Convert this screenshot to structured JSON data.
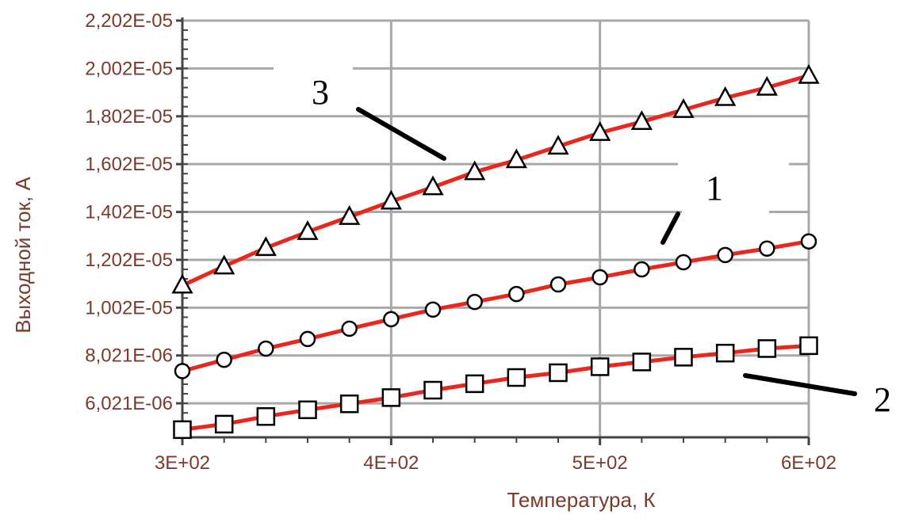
{
  "chart_data": {
    "type": "line",
    "title": "",
    "xlabel": "Температура, К",
    "ylabel": "Выходной ток, А",
    "xlim": [
      300,
      600
    ],
    "ylim": [
      4.6e-06,
      2.202e-05
    ],
    "x_ticks": [
      {
        "value": 300,
        "label": "3E+02"
      },
      {
        "value": 400,
        "label": "4E+02"
      },
      {
        "value": 500,
        "label": "5E+02"
      },
      {
        "value": 600,
        "label": "6E+02"
      }
    ],
    "y_ticks": [
      {
        "value": 6.021e-06,
        "label": "6,021E-06"
      },
      {
        "value": 8.021e-06,
        "label": "8,021E-06"
      },
      {
        "value": 1.002e-05,
        "label": "1,002E-05"
      },
      {
        "value": 1.202e-05,
        "label": "1,202E-05"
      },
      {
        "value": 1.402e-05,
        "label": "1,402E-05"
      },
      {
        "value": 1.602e-05,
        "label": "1,602E-05"
      },
      {
        "value": 1.802e-05,
        "label": "1,802E-05"
      },
      {
        "value": 2.002e-05,
        "label": "2,002E-05"
      },
      {
        "value": 2.202e-05,
        "label": "2,202E-05"
      }
    ],
    "grid": true,
    "line_color": "#e8281e",
    "series": [
      {
        "label": "1",
        "marker": "circle",
        "x": [
          300,
          320,
          340,
          360,
          380,
          400,
          420,
          440,
          460,
          480,
          500,
          520,
          540,
          560,
          580,
          600
        ],
        "y": [
          7.37e-06,
          7.84e-06,
          8.31e-06,
          8.71e-06,
          9.14e-06,
          9.54e-06,
          9.94e-06,
          1.026e-05,
          1.059e-05,
          1.099e-05,
          1.129e-05,
          1.162e-05,
          1.192e-05,
          1.222e-05,
          1.249e-05,
          1.279e-05
        ]
      },
      {
        "label": "2",
        "marker": "square",
        "x": [
          300,
          320,
          340,
          360,
          380,
          400,
          420,
          440,
          460,
          480,
          500,
          520,
          540,
          560,
          580,
          600
        ],
        "y": [
          4.92e-06,
          5.15e-06,
          5.47e-06,
          5.75e-06,
          6e-06,
          6.26e-06,
          6.57e-06,
          6.84e-06,
          7.1e-06,
          7.3e-06,
          7.55e-06,
          7.75e-06,
          7.95e-06,
          8.12e-06,
          8.31e-06,
          8.43e-06
        ]
      },
      {
        "label": "3",
        "marker": "triangle",
        "x": [
          300,
          320,
          340,
          360,
          380,
          400,
          420,
          440,
          460,
          480,
          500,
          520,
          540,
          560,
          580,
          600
        ],
        "y": [
          1.095e-05,
          1.175e-05,
          1.252e-05,
          1.319e-05,
          1.382e-05,
          1.446e-05,
          1.506e-05,
          1.569e-05,
          1.619e-05,
          1.676e-05,
          1.733e-05,
          1.779e-05,
          1.829e-05,
          1.879e-05,
          1.922e-05,
          1.972e-05
        ]
      }
    ],
    "annotations": [
      {
        "text": "3",
        "series": 2
      },
      {
        "text": "1",
        "series": 0
      },
      {
        "text": "2",
        "series": 1
      }
    ]
  }
}
